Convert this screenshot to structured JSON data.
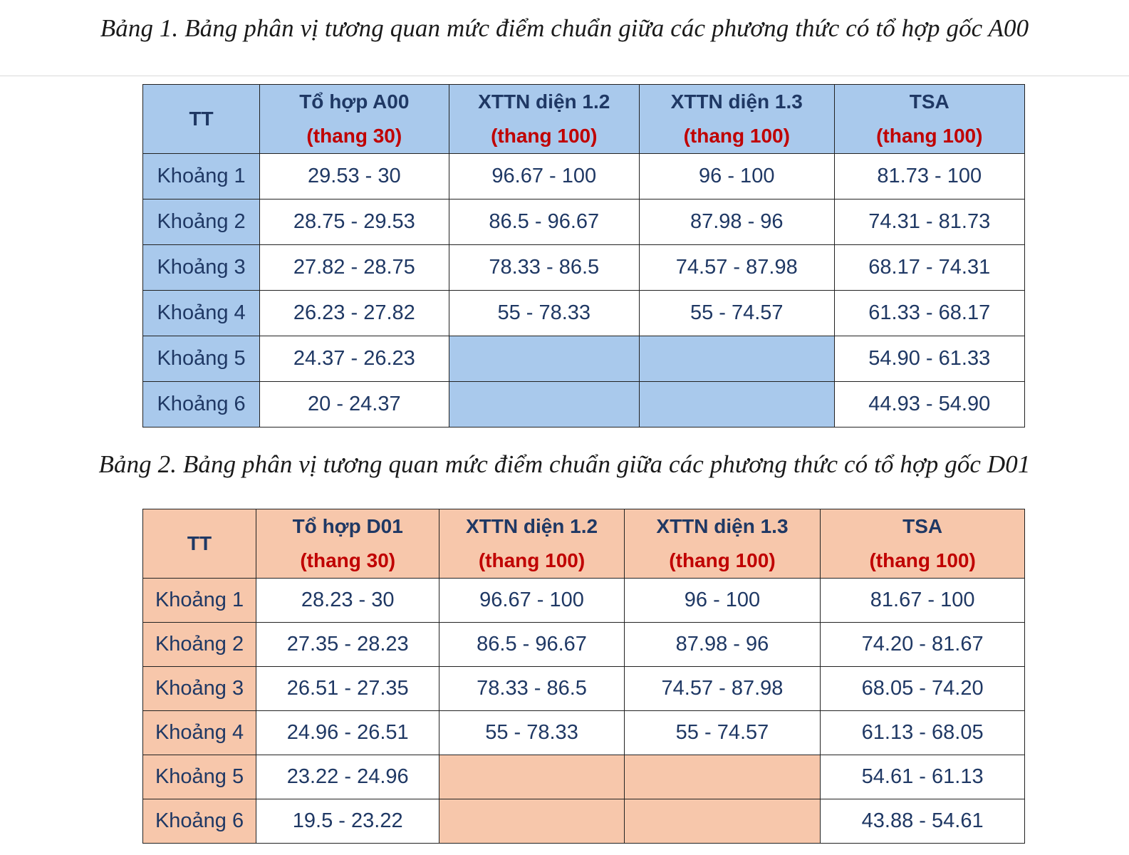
{
  "table1": {
    "caption": "Bảng 1. Bảng phân vị tương quan mức điểm chuẩn giữa các phương thức có tổ hợp gốc A00",
    "header_tt": "TT",
    "columns": [
      {
        "main": "Tổ hợp A00",
        "sub": "(thang 30)"
      },
      {
        "main": "XTTN diện 1.2",
        "sub": "(thang 100)"
      },
      {
        "main": "XTTN diện 1.3",
        "sub": "(thang 100)"
      },
      {
        "main": "TSA",
        "sub": "(thang 100)"
      }
    ],
    "rows": [
      {
        "label": "Khoảng 1",
        "cells": [
          "29.53 - 30",
          "96.67 - 100",
          "96 - 100",
          "81.73 - 100"
        ]
      },
      {
        "label": "Khoảng 2",
        "cells": [
          "28.75 - 29.53",
          "86.5 - 96.67",
          "87.98 - 96",
          "74.31 - 81.73"
        ]
      },
      {
        "label": "Khoảng 3",
        "cells": [
          "27.82 - 28.75",
          "78.33 - 86.5",
          "74.57 - 87.98",
          "68.17 - 74.31"
        ]
      },
      {
        "label": "Khoảng 4",
        "cells": [
          "26.23 - 27.82",
          "55 - 78.33",
          "55 - 74.57",
          "61.33 - 68.17"
        ]
      },
      {
        "label": "Khoảng 5",
        "cells": [
          "24.37 - 26.23",
          "",
          "",
          "54.90 - 61.33"
        ]
      },
      {
        "label": "Khoảng 6",
        "cells": [
          "20 - 24.37",
          "",
          "",
          "44.93 - 54.90"
        ]
      }
    ],
    "fill_color": "#a9c9ec"
  },
  "table2": {
    "caption": "Bảng 2. Bảng phân vị tương quan mức điểm chuẩn giữa các phương thức có tổ hợp gốc D01",
    "header_tt": "TT",
    "columns": [
      {
        "main": "Tổ hợp D01",
        "sub": "(thang 30)"
      },
      {
        "main": "XTTN diện 1.2",
        "sub": "(thang 100)"
      },
      {
        "main": "XTTN diện 1.3",
        "sub": "(thang 100)"
      },
      {
        "main": "TSA",
        "sub": "(thang 100)"
      }
    ],
    "rows": [
      {
        "label": "Khoảng 1",
        "cells": [
          "28.23 - 30",
          "96.67 - 100",
          "96 - 100",
          "81.67 - 100"
        ]
      },
      {
        "label": "Khoảng 2",
        "cells": [
          "27.35 - 28.23",
          "86.5 - 96.67",
          "87.98 - 96",
          "74.20 - 81.67"
        ]
      },
      {
        "label": "Khoảng 3",
        "cells": [
          "26.51 - 27.35",
          "78.33 - 86.5",
          "74.57 - 87.98",
          "68.05 - 74.20"
        ]
      },
      {
        "label": "Khoảng 4",
        "cells": [
          "24.96 - 26.51",
          "55 - 78.33",
          "55 - 74.57",
          "61.13 - 68.05"
        ]
      },
      {
        "label": "Khoảng 5",
        "cells": [
          "23.22 - 24.96",
          "",
          "",
          "54.61 - 61.13"
        ]
      },
      {
        "label": "Khoảng 6",
        "cells": [
          "19.5 - 23.22",
          "",
          "",
          "43.88 - 54.61"
        ]
      }
    ],
    "fill_color": "#f7c7ab"
  },
  "colors": {
    "text_navy": "#1f3864",
    "text_red": "#c00000"
  }
}
